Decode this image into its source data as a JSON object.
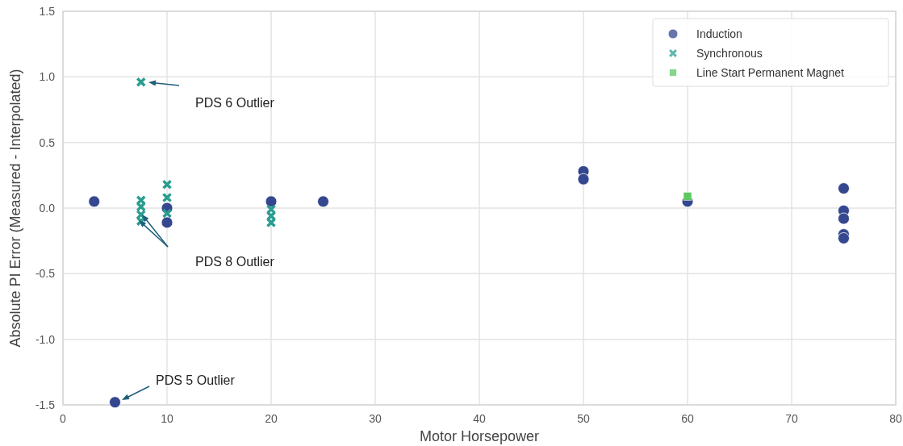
{
  "chart_data": {
    "type": "scatter",
    "xlabel": "Motor Horsepower",
    "ylabel": "Absolute PI Error (Measured - Interpolated)",
    "xlim": [
      0,
      80
    ],
    "xticks": [
      0,
      10,
      20,
      30,
      40,
      50,
      60,
      70,
      80
    ],
    "ylim": [
      -1.5,
      1.5
    ],
    "yticks": [
      -1.5,
      {
        "value": -1,
        "label": "-1.0"
      },
      -0.5,
      {
        "value": 0,
        "label": "0.0"
      },
      0.5,
      {
        "value": 1,
        "label": "1.0"
      },
      1.5
    ],
    "grid": true,
    "legend": "top right",
    "series": [
      {
        "name": "Induction",
        "color": "#34478f",
        "marker": "circle",
        "x": [
          3,
          5,
          10,
          10,
          20,
          25,
          50,
          50,
          60,
          75,
          75,
          75,
          75,
          75
        ],
        "values": [
          0.05,
          -1.48,
          0.0,
          -0.11,
          0.05,
          0.05,
          0.28,
          0.22,
          0.05,
          0.15,
          -0.02,
          -0.08,
          -0.2,
          -0.23
        ]
      },
      {
        "name": "Synchronous",
        "color": "#2a9d8f",
        "marker": "cross",
        "x": [
          7.5,
          7.5,
          7.5,
          7.5,
          7.5,
          10,
          10,
          10,
          20,
          20,
          20
        ],
        "values": [
          0.96,
          0.06,
          0.01,
          -0.05,
          -0.1,
          0.18,
          0.08,
          -0.04,
          -0.01,
          -0.06,
          -0.11
        ]
      },
      {
        "name": "Line Start Permanent Magnet",
        "color": "#5ec962",
        "marker": "square",
        "x": [
          60
        ],
        "values": [
          0.09
        ]
      }
    ],
    "annotations": [
      "PDS 6 Outlier",
      "PDS 8 Outlier",
      "PDS 5 Outlier"
    ]
  }
}
